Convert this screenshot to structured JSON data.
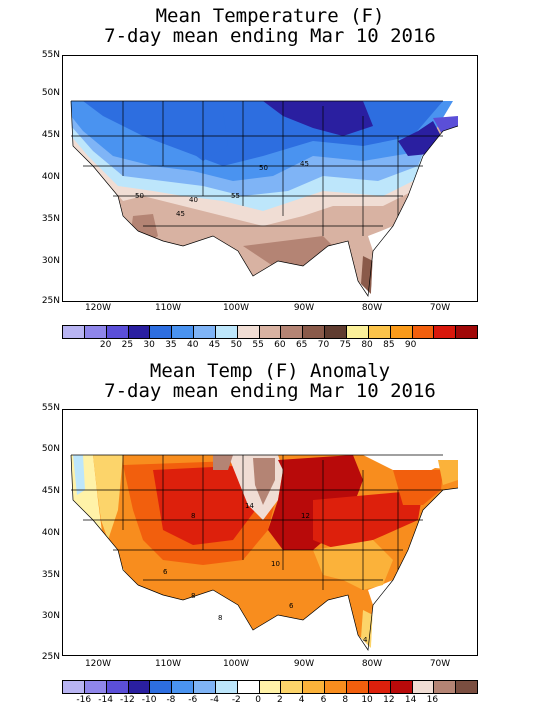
{
  "panel1": {
    "title_line1": "Mean Temperature (F)",
    "title_line2": "7-day mean ending Mar 10 2016",
    "lat_labels": [
      "55N",
      "50N",
      "45N",
      "40N",
      "35N",
      "30N",
      "25N"
    ],
    "lon_labels": [
      "120W",
      "110W",
      "100W",
      "90W",
      "80W",
      "70W"
    ],
    "contour_labels": [
      "50",
      "45",
      "40",
      "55",
      "50",
      "45"
    ],
    "colorbar_colors": [
      "#b8b4f2",
      "#8f86ea",
      "#5b4fd8",
      "#2a1fa0",
      "#2d6ee0",
      "#4a93f0",
      "#7fb4f6",
      "#bde6fb",
      "#f0ddd4",
      "#d8b2a2",
      "#b48474",
      "#8a5a4a",
      "#603c30",
      "#fbf09a",
      "#fbc34a",
      "#f99a1a",
      "#f25f0d",
      "#d8180c",
      "#a00808"
    ],
    "colorbar_labels": [
      "20",
      "25",
      "30",
      "35",
      "40",
      "45",
      "50",
      "55",
      "60",
      "65",
      "70",
      "75",
      "80",
      "85",
      "90"
    ]
  },
  "panel2": {
    "title_line1": "Mean Temp (F) Anomaly",
    "title_line2": "7-day mean ending Mar 10 2016",
    "lat_labels": [
      "55N",
      "50N",
      "45N",
      "40N",
      "35N",
      "30N",
      "25N"
    ],
    "lon_labels": [
      "120W",
      "110W",
      "100W",
      "90W",
      "80W",
      "70W"
    ],
    "contour_labels": [
      "8",
      "14",
      "12",
      "6",
      "10",
      "8",
      "6",
      "8",
      "4"
    ],
    "colorbar_colors": [
      "#b8b4f2",
      "#8f86ea",
      "#5b4fd8",
      "#2a1fa0",
      "#2d6ee0",
      "#4a93f0",
      "#7fb4f6",
      "#bde6fb",
      "#ffffff",
      "#fff2a8",
      "#fcd46a",
      "#fbb23a",
      "#f88d1e",
      "#f25f0d",
      "#dd200c",
      "#b80a0a",
      "#f0ddd4",
      "#b48474",
      "#7a4e40"
    ],
    "colorbar_labels": [
      "-16",
      "-14",
      "-12",
      "-10",
      "-8",
      "-6",
      "-4",
      "-2",
      "0",
      "2",
      "4",
      "6",
      "8",
      "10",
      "12",
      "14",
      "16"
    ]
  }
}
